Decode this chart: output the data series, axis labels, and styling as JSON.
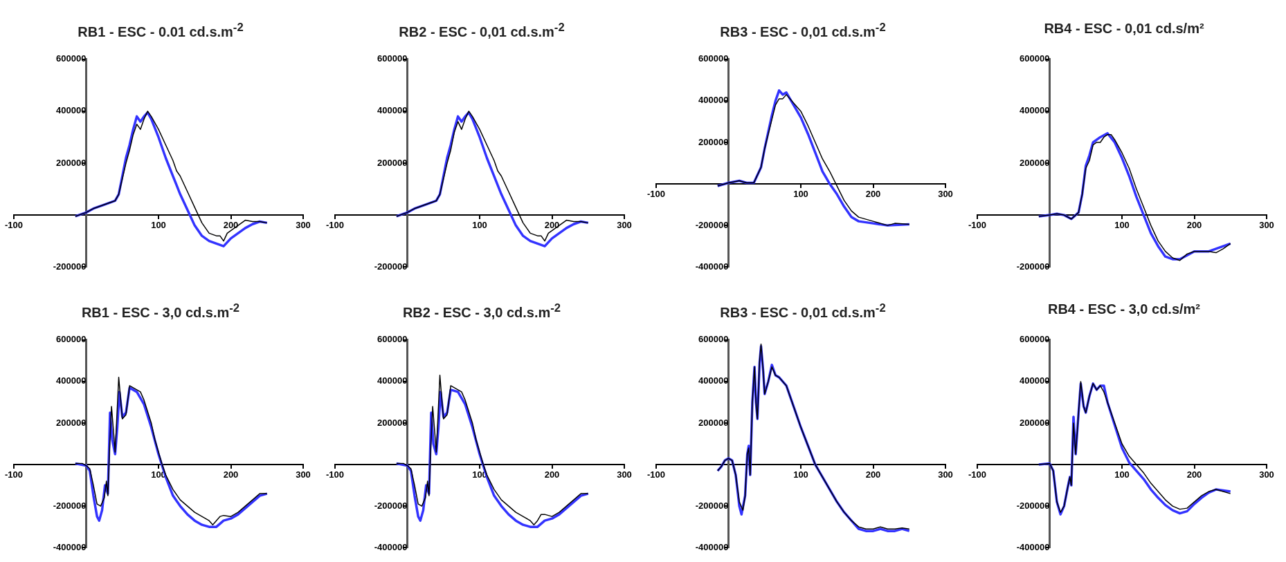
{
  "chart_data": [
    {
      "type": "line",
      "title": "RB1 - ESC - 0.01 cd.s.m$^{-2}$",
      "xlim": [
        -100,
        300
      ],
      "xticks": [
        -100,
        100,
        200,
        300
      ],
      "ylim": [
        -200000,
        600000
      ],
      "yticks": [
        -200000,
        200000,
        400000,
        600000
      ],
      "marker": "none",
      "series": [
        {
          "color": "#3333ff",
          "x": [
            -15,
            0,
            10,
            25,
            40,
            45,
            50,
            55,
            60,
            65,
            70,
            75,
            80,
            85,
            90,
            100,
            110,
            120,
            130,
            140,
            150,
            160,
            170,
            180,
            190,
            200,
            210,
            220,
            230,
            240,
            250
          ],
          "values": [
            -5000,
            10000,
            25000,
            40000,
            55000,
            80000,
            150000,
            220000,
            270000,
            330000,
            380000,
            360000,
            380000,
            395000,
            370000,
            300000,
            220000,
            150000,
            80000,
            20000,
            -40000,
            -80000,
            -100000,
            -110000,
            -120000,
            -90000,
            -70000,
            -50000,
            -35000,
            -25000,
            -30000
          ]
        },
        {
          "color": "#000000",
          "x": [
            -15,
            0,
            10,
            25,
            40,
            45,
            50,
            55,
            60,
            65,
            70,
            75,
            80,
            85,
            90,
            100,
            110,
            120,
            125,
            130,
            140,
            150,
            160,
            170,
            180,
            185,
            190,
            195,
            200,
            210,
            220,
            230,
            240,
            250
          ],
          "values": [
            -5000,
            10000,
            25000,
            40000,
            55000,
            80000,
            140000,
            200000,
            250000,
            310000,
            350000,
            330000,
            370000,
            400000,
            380000,
            330000,
            270000,
            210000,
            170000,
            150000,
            90000,
            30000,
            -30000,
            -70000,
            -80000,
            -80000,
            -100000,
            -70000,
            -60000,
            -40000,
            -20000,
            -25000,
            -25000,
            -30000
          ]
        }
      ]
    },
    {
      "type": "line",
      "title": "RB2 - ESC - 0,01 cd.s.m$^{-2}$",
      "xlim": [
        -100,
        300
      ],
      "xticks": [
        -100,
        100,
        200,
        300
      ],
      "ylim": [
        -200000,
        600000
      ],
      "yticks": [
        -200000,
        200000,
        400000,
        600000
      ],
      "marker": "none",
      "series": [
        {
          "color": "#3333ff",
          "x": [
            -15,
            0,
            10,
            25,
            40,
            45,
            50,
            55,
            60,
            65,
            70,
            75,
            80,
            85,
            90,
            100,
            110,
            120,
            130,
            140,
            150,
            160,
            170,
            180,
            190,
            200,
            210,
            220,
            230,
            240,
            250
          ],
          "values": [
            -5000,
            10000,
            25000,
            40000,
            55000,
            80000,
            150000,
            220000,
            270000,
            330000,
            380000,
            360000,
            380000,
            395000,
            370000,
            300000,
            220000,
            150000,
            80000,
            20000,
            -40000,
            -80000,
            -100000,
            -110000,
            -120000,
            -90000,
            -70000,
            -50000,
            -35000,
            -25000,
            -30000
          ]
        },
        {
          "color": "#000000",
          "x": [
            -15,
            0,
            10,
            25,
            40,
            45,
            50,
            55,
            60,
            65,
            70,
            75,
            80,
            85,
            90,
            100,
            110,
            120,
            125,
            130,
            140,
            150,
            160,
            170,
            180,
            185,
            190,
            195,
            200,
            210,
            220,
            230,
            240,
            250
          ],
          "values": [
            -5000,
            10000,
            25000,
            40000,
            55000,
            80000,
            140000,
            200000,
            250000,
            320000,
            360000,
            330000,
            370000,
            400000,
            380000,
            330000,
            270000,
            210000,
            170000,
            150000,
            90000,
            30000,
            -30000,
            -70000,
            -80000,
            -80000,
            -100000,
            -70000,
            -60000,
            -40000,
            -20000,
            -25000,
            -25000,
            -30000
          ]
        }
      ]
    },
    {
      "type": "line",
      "title": "RB3 - ESC - 0,01 cd.s.m$^{-2}$",
      "xlim": [
        -100,
        300
      ],
      "xticks": [
        -100,
        100,
        200,
        300
      ],
      "ylim": [
        -400000,
        600000
      ],
      "yticks": [
        -400000,
        -200000,
        200000,
        400000,
        600000
      ],
      "marker": "none",
      "series": [
        {
          "color": "#3333ff",
          "x": [
            -15,
            0,
            15,
            25,
            35,
            45,
            50,
            55,
            60,
            65,
            70,
            75,
            80,
            90,
            100,
            110,
            120,
            130,
            140,
            150,
            160,
            170,
            180,
            200,
            220,
            250
          ],
          "values": [
            -10000,
            5000,
            15000,
            5000,
            5000,
            80000,
            170000,
            250000,
            330000,
            400000,
            450000,
            430000,
            440000,
            380000,
            320000,
            240000,
            150000,
            60000,
            0,
            -50000,
            -110000,
            -160000,
            -180000,
            -190000,
            -200000,
            -195000
          ]
        },
        {
          "color": "#000000",
          "x": [
            -15,
            0,
            15,
            25,
            35,
            45,
            50,
            55,
            60,
            65,
            70,
            75,
            80,
            85,
            90,
            100,
            110,
            120,
            130,
            140,
            150,
            160,
            170,
            180,
            200,
            220,
            230,
            250
          ],
          "values": [
            -10000,
            5000,
            15000,
            5000,
            5000,
            80000,
            170000,
            240000,
            310000,
            380000,
            410000,
            410000,
            430000,
            410000,
            390000,
            350000,
            280000,
            200000,
            120000,
            60000,
            -10000,
            -80000,
            -130000,
            -160000,
            -180000,
            -200000,
            -190000,
            -195000
          ]
        }
      ]
    },
    {
      "type": "line",
      "title": "RB4 - ESC - 0,01 cd.s/m²",
      "xlim": [
        -100,
        300
      ],
      "xticks": [
        -100,
        100,
        200,
        300
      ],
      "ylim": [
        -200000,
        600000
      ],
      "yticks": [
        -200000,
        200000,
        400000,
        600000
      ],
      "marker": "none",
      "series": [
        {
          "color": "#3333ff",
          "x": [
            -15,
            0,
            10,
            20,
            30,
            40,
            45,
            50,
            55,
            60,
            70,
            80,
            90,
            100,
            110,
            120,
            130,
            140,
            150,
            160,
            170,
            180,
            200,
            220,
            250
          ],
          "values": [
            -5000,
            0,
            5000,
            0,
            -15000,
            10000,
            80000,
            190000,
            230000,
            280000,
            300000,
            315000,
            280000,
            220000,
            150000,
            70000,
            0,
            -70000,
            -120000,
            -160000,
            -170000,
            -170000,
            -140000,
            -140000,
            -110000
          ]
        },
        {
          "color": "#000000",
          "x": [
            -15,
            0,
            10,
            20,
            30,
            40,
            45,
            50,
            55,
            60,
            65,
            70,
            75,
            80,
            85,
            90,
            100,
            110,
            120,
            130,
            140,
            150,
            160,
            170,
            180,
            190,
            200,
            220,
            230,
            240,
            250
          ],
          "values": [
            -5000,
            0,
            5000,
            0,
            -15000,
            10000,
            80000,
            180000,
            210000,
            270000,
            280000,
            280000,
            300000,
            310000,
            310000,
            290000,
            240000,
            180000,
            100000,
            30000,
            -40000,
            -100000,
            -140000,
            -165000,
            -175000,
            -150000,
            -140000,
            -140000,
            -145000,
            -130000,
            -110000
          ]
        }
      ]
    },
    {
      "type": "line",
      "title": "RB1 - ESC - 3,0 cd.s.m$^{-2}$",
      "xlim": [
        -100,
        300
      ],
      "xticks": [
        -100,
        100,
        200,
        300
      ],
      "ylim": [
        -400000,
        600000
      ],
      "yticks": [
        -400000,
        -200000,
        200000,
        400000,
        600000
      ],
      "marker": "none",
      "series": [
        {
          "color": "#3333ff",
          "x": [
            -15,
            0,
            5,
            10,
            15,
            18,
            22,
            26,
            30,
            33,
            36,
            40,
            43,
            46,
            50,
            55,
            60,
            70,
            80,
            90,
            100,
            110,
            120,
            130,
            140,
            150,
            160,
            170,
            180,
            190,
            200,
            210,
            220,
            230,
            240,
            250
          ],
          "values": [
            5000,
            -5000,
            -30000,
            -150000,
            -250000,
            -270000,
            -220000,
            -100000,
            -140000,
            250000,
            120000,
            50000,
            180000,
            350000,
            230000,
            250000,
            370000,
            350000,
            290000,
            180000,
            50000,
            -60000,
            -150000,
            -200000,
            -240000,
            -270000,
            -290000,
            -300000,
            -300000,
            -270000,
            -260000,
            -240000,
            -210000,
            -180000,
            -150000,
            -140000
          ]
        },
        {
          "color": "#000000",
          "x": [
            -15,
            -5,
            0,
            5,
            10,
            15,
            20,
            25,
            28,
            30,
            32,
            35,
            38,
            40,
            42,
            45,
            48,
            50,
            55,
            60,
            65,
            70,
            75,
            80,
            90,
            95,
            100,
            105,
            110,
            120,
            130,
            140,
            150,
            160,
            170,
            175,
            180,
            185,
            190,
            200,
            210,
            220,
            230,
            240,
            250
          ],
          "values": [
            5000,
            5000,
            -5000,
            -20000,
            -100000,
            -190000,
            -200000,
            -160000,
            -80000,
            -150000,
            50000,
            280000,
            150000,
            60000,
            200000,
            420000,
            300000,
            220000,
            240000,
            380000,
            370000,
            360000,
            350000,
            310000,
            200000,
            120000,
            60000,
            0,
            -50000,
            -120000,
            -170000,
            -200000,
            -230000,
            -250000,
            -270000,
            -290000,
            -270000,
            -250000,
            -245000,
            -250000,
            -230000,
            -200000,
            -170000,
            -140000,
            -140000
          ]
        }
      ]
    },
    {
      "type": "line",
      "title": "RB2 - ESC - 3,0 cd.s.m$^{-2}$",
      "xlim": [
        -100,
        300
      ],
      "xticks": [
        -100,
        100,
        200,
        300
      ],
      "ylim": [
        -400000,
        600000
      ],
      "yticks": [
        -400000,
        -200000,
        200000,
        400000,
        600000
      ],
      "marker": "none",
      "series": [
        {
          "color": "#3333ff",
          "x": [
            -15,
            0,
            5,
            10,
            15,
            18,
            22,
            26,
            30,
            33,
            36,
            40,
            43,
            46,
            50,
            55,
            60,
            70,
            80,
            90,
            100,
            110,
            120,
            130,
            140,
            150,
            160,
            170,
            180,
            190,
            200,
            210,
            220,
            230,
            240,
            250
          ],
          "values": [
            5000,
            -5000,
            -30000,
            -150000,
            -250000,
            -270000,
            -220000,
            -100000,
            -140000,
            250000,
            100000,
            50000,
            180000,
            350000,
            230000,
            250000,
            360000,
            350000,
            290000,
            180000,
            50000,
            -60000,
            -150000,
            -200000,
            -240000,
            -270000,
            -290000,
            -300000,
            -300000,
            -270000,
            -260000,
            -240000,
            -210000,
            -180000,
            -150000,
            -140000
          ]
        },
        {
          "color": "#000000",
          "x": [
            -15,
            -5,
            0,
            5,
            10,
            15,
            20,
            25,
            28,
            30,
            32,
            35,
            38,
            40,
            42,
            45,
            48,
            50,
            55,
            60,
            65,
            70,
            75,
            80,
            90,
            95,
            100,
            105,
            110,
            120,
            130,
            140,
            150,
            160,
            170,
            175,
            180,
            185,
            190,
            200,
            210,
            220,
            230,
            240,
            250
          ],
          "values": [
            5000,
            5000,
            -5000,
            -20000,
            -100000,
            -190000,
            -200000,
            -160000,
            -80000,
            -150000,
            50000,
            280000,
            150000,
            60000,
            200000,
            430000,
            300000,
            220000,
            240000,
            380000,
            370000,
            360000,
            350000,
            310000,
            200000,
            120000,
            60000,
            0,
            -50000,
            -120000,
            -170000,
            -200000,
            -230000,
            -250000,
            -270000,
            -290000,
            -270000,
            -240000,
            -240000,
            -250000,
            -230000,
            -200000,
            -170000,
            -140000,
            -140000
          ]
        }
      ]
    },
    {
      "type": "line",
      "title": "RB3 - ESC - 0,01 cd.s.m$^{-2}$",
      "xlim": [
        -100,
        300
      ],
      "xticks": [
        -100,
        100,
        200,
        300
      ],
      "ylim": [
        -400000,
        600000
      ],
      "yticks": [
        -400000,
        -200000,
        200000,
        400000,
        600000
      ],
      "marker": "none",
      "series": [
        {
          "color": "#3333ff",
          "x": [
            -15,
            -10,
            -5,
            0,
            5,
            10,
            15,
            18,
            23,
            26,
            28,
            30,
            33,
            36,
            38,
            40,
            43,
            45,
            48,
            50,
            55,
            60,
            65,
            70,
            80,
            90,
            100,
            110,
            120,
            130,
            140,
            150,
            160,
            170,
            180,
            190,
            200,
            210,
            220,
            230,
            240,
            250
          ],
          "values": [
            -30000,
            -10000,
            20000,
            30000,
            20000,
            -50000,
            -200000,
            -240000,
            -150000,
            50000,
            90000,
            -50000,
            300000,
            470000,
            300000,
            220000,
            490000,
            570000,
            450000,
            340000,
            400000,
            480000,
            430000,
            420000,
            380000,
            280000,
            180000,
            90000,
            0,
            -60000,
            -120000,
            -180000,
            -230000,
            -270000,
            -310000,
            -320000,
            -320000,
            -310000,
            -320000,
            -320000,
            -310000,
            -320000
          ]
        },
        {
          "color": "#000000",
          "x": [
            -15,
            -10,
            -5,
            0,
            5,
            10,
            15,
            20,
            23,
            26,
            28,
            30,
            33,
            36,
            38,
            40,
            43,
            45,
            48,
            50,
            55,
            60,
            65,
            70,
            80,
            90,
            100,
            110,
            120,
            130,
            140,
            150,
            160,
            170,
            180,
            190,
            200,
            210,
            220,
            230,
            240,
            250
          ],
          "values": [
            -30000,
            -10000,
            20000,
            30000,
            20000,
            -50000,
            -180000,
            -220000,
            -150000,
            50000,
            80000,
            -50000,
            300000,
            470000,
            300000,
            220000,
            500000,
            580000,
            450000,
            340000,
            400000,
            470000,
            430000,
            420000,
            380000,
            280000,
            180000,
            90000,
            0,
            -60000,
            -120000,
            -180000,
            -230000,
            -270000,
            -300000,
            -310000,
            -310000,
            -300000,
            -310000,
            -310000,
            -305000,
            -310000
          ]
        }
      ]
    },
    {
      "type": "line",
      "title": "RB4 - ESC - 3,0 cd.s/m²",
      "xlim": [
        -100,
        300
      ],
      "xticks": [
        -100,
        100,
        200,
        300
      ],
      "ylim": [
        -400000,
        600000
      ],
      "yticks": [
        -400000,
        -200000,
        200000,
        400000,
        600000
      ],
      "marker": "none",
      "series": [
        {
          "color": "#3333ff",
          "x": [
            -15,
            0,
            5,
            10,
            15,
            20,
            25,
            28,
            30,
            33,
            36,
            40,
            43,
            47,
            50,
            55,
            60,
            65,
            70,
            75,
            80,
            90,
            100,
            110,
            120,
            130,
            140,
            150,
            160,
            170,
            180,
            190,
            200,
            210,
            220,
            230,
            240,
            250
          ],
          "values": [
            0,
            5000,
            -30000,
            -180000,
            -240000,
            -200000,
            -110000,
            -60000,
            -100000,
            230000,
            50000,
            250000,
            390000,
            280000,
            250000,
            330000,
            390000,
            360000,
            380000,
            380000,
            300000,
            190000,
            80000,
            10000,
            -30000,
            -70000,
            -120000,
            -160000,
            -195000,
            -220000,
            -235000,
            -225000,
            -190000,
            -160000,
            -135000,
            -120000,
            -125000,
            -130000
          ]
        },
        {
          "color": "#000000",
          "x": [
            -15,
            0,
            5,
            10,
            15,
            20,
            25,
            28,
            30,
            33,
            36,
            40,
            43,
            47,
            50,
            55,
            60,
            65,
            70,
            75,
            80,
            90,
            100,
            110,
            120,
            130,
            140,
            150,
            160,
            170,
            180,
            190,
            200,
            210,
            220,
            230,
            240,
            250
          ],
          "values": [
            0,
            5000,
            -30000,
            -180000,
            -230000,
            -200000,
            -110000,
            -60000,
            -100000,
            200000,
            50000,
            250000,
            400000,
            280000,
            250000,
            330000,
            390000,
            360000,
            380000,
            350000,
            300000,
            200000,
            100000,
            40000,
            0,
            -40000,
            -90000,
            -130000,
            -170000,
            -200000,
            -215000,
            -210000,
            -180000,
            -150000,
            -130000,
            -120000,
            -130000,
            -140000
          ]
        }
      ]
    }
  ]
}
